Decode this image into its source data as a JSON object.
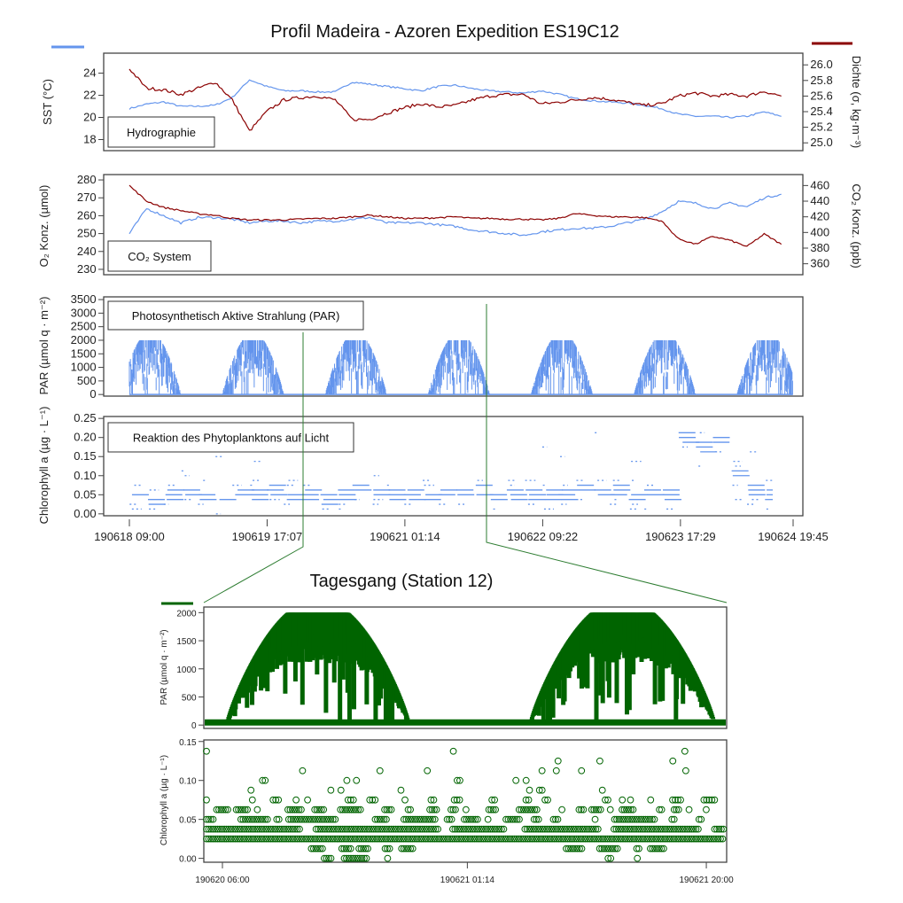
{
  "title": "Profil Madeira - Azoren Expedition ES19C12",
  "subtitle": "Tagesgang (Station 12)",
  "colors": {
    "sst": "#6495ED",
    "density": "#8B0000",
    "o2": "#6495ED",
    "co2": "#8B0000",
    "par": "#6495ED",
    "chl": "#6495ED",
    "detail": "#006400"
  },
  "chart_data": [
    {
      "type": "line",
      "panel_label": "Hydrographie",
      "ylabel_left": "SST (°C)",
      "ylabel_right": "Dichte (σ, kg·m⁻³)",
      "yticks_left": [
        18,
        20,
        22,
        24
      ],
      "yticks_right": [
        25.0,
        25.2,
        25.4,
        25.6,
        25.8,
        26.0
      ],
      "ylim_left": [
        17,
        25.8
      ],
      "ylim_right": [
        24.9,
        26.15
      ],
      "x": [
        "190618 09:00",
        "190618 13:00",
        "190618 17:00",
        "190618 21:00",
        "190619 01:00",
        "190619 05:00",
        "190619 09:00",
        "190619 13:00",
        "190619 17:00",
        "190619 21:00",
        "190620 01:00",
        "190620 05:00",
        "190620 09:00",
        "190620 13:00",
        "190620 17:00",
        "190620 21:00",
        "190621 01:00",
        "190621 05:00",
        "190621 09:00",
        "190621 13:00",
        "190621 17:00",
        "190621 21:00",
        "190622 01:00",
        "190622 05:00",
        "190622 09:00",
        "190622 13:00",
        "190622 17:00",
        "190622 21:00",
        "190623 01:00",
        "190623 05:00",
        "190623 09:00",
        "190623 13:00",
        "190623 17:00",
        "190623 21:00",
        "190624 01:00",
        "190624 05:00",
        "190624 09:00",
        "190624 13:00",
        "190624 17:00"
      ],
      "series": [
        {
          "axis": "left",
          "values": [
            20.8,
            21.2,
            21.4,
            21.0,
            21.0,
            21.1,
            21.8,
            23.4,
            22.8,
            22.4,
            22.4,
            22.3,
            22.3,
            23.2,
            23.0,
            22.8,
            22.6,
            22.4,
            22.8,
            22.9,
            22.6,
            22.4,
            22.3,
            22.2,
            22.4,
            22.1,
            21.7,
            21.5,
            21.4,
            21.3,
            21.1,
            20.8,
            20.3,
            20.1,
            20.1,
            20.0,
            20.1,
            20.5,
            20.1
          ]
        },
        {
          "axis": "right",
          "values": [
            25.95,
            25.7,
            25.68,
            25.62,
            25.7,
            25.78,
            25.55,
            25.15,
            25.4,
            25.55,
            25.58,
            25.6,
            25.55,
            25.3,
            25.3,
            25.38,
            25.45,
            25.5,
            25.46,
            25.48,
            25.55,
            25.6,
            25.62,
            25.62,
            25.5,
            25.52,
            25.55,
            25.58,
            25.56,
            25.52,
            25.48,
            25.5,
            25.6,
            25.64,
            25.6,
            25.62,
            25.6,
            25.66,
            25.6
          ]
        }
      ]
    },
    {
      "type": "line",
      "panel_label": "CO₂ System",
      "ylabel_left": "O₂ Konz. (µmol)",
      "ylabel_right": "CO₂ Konz. (ppb)",
      "yticks_left": [
        230,
        240,
        250,
        260,
        270,
        280
      ],
      "yticks_right": [
        360,
        380,
        400,
        420,
        440,
        460
      ],
      "ylim_left": [
        227,
        283
      ],
      "ylim_right": [
        346,
        474
      ],
      "series": [
        {
          "axis": "left",
          "values": [
            250,
            264,
            260,
            256,
            259,
            259,
            258,
            256,
            257,
            257,
            256,
            257,
            257,
            258,
            259,
            256,
            256,
            256,
            255,
            254,
            252,
            251,
            250,
            249,
            251,
            252,
            253,
            253,
            254,
            256,
            258,
            262,
            268,
            267,
            264,
            267,
            265,
            270,
            272
          ]
        },
        {
          "axis": "right",
          "values": [
            460,
            440,
            432,
            428,
            424,
            422,
            418,
            416,
            416,
            416,
            417,
            418,
            418,
            420,
            422,
            420,
            418,
            418,
            419,
            420,
            418,
            418,
            417,
            417,
            416,
            418,
            424,
            422,
            420,
            420,
            419,
            415,
            392,
            385,
            395,
            390,
            382,
            398,
            385
          ]
        }
      ]
    },
    {
      "type": "scatter",
      "panel_label": "Photosynthetisch Aktive Strahlung (PAR)",
      "ylabel": "PAR (µmol q · m⁻²)",
      "yticks": [
        0,
        500,
        1000,
        1500,
        2000,
        2500,
        3000,
        3500
      ],
      "ylim": [
        -60,
        3600
      ],
      "days": [
        {
          "rise": "190618 06:40",
          "set": "190618 21:00",
          "max": 2000
        },
        {
          "rise": "190619 06:40",
          "set": "190619 21:00",
          "max": 2000
        },
        {
          "rise": "190620 06:40",
          "set": "190620 21:00",
          "max": 2000
        },
        {
          "rise": "190621 06:40",
          "set": "190621 21:00",
          "max": 2000
        },
        {
          "rise": "190622 06:40",
          "set": "190622 21:00",
          "max": 2000
        },
        {
          "rise": "190623 06:40",
          "set": "190623 21:00",
          "max": 2000
        },
        {
          "rise": "190624 06:40",
          "set": "190624 21:00",
          "max": 2000
        }
      ]
    },
    {
      "type": "scatter",
      "panel_label": "Reaktion des Phytoplanktons auf Licht",
      "ylabel": "Chlorophyll a (µg · L⁻¹)",
      "yticks": [
        0.0,
        0.05,
        0.1,
        0.15,
        0.2,
        0.25
      ],
      "ylim": [
        -0.005,
        0.255
      ],
      "median": [
        0.05,
        0.04,
        0.05,
        0.06,
        0.05,
        0.04,
        0.05,
        0.05,
        0.06,
        0.05,
        0.05,
        0.04,
        0.05,
        0.06,
        0.06,
        0.05,
        0.05,
        0.05,
        0.05,
        0.06,
        0.06,
        0.05,
        0.05,
        0.05,
        0.05,
        0.05,
        0.06,
        0.06,
        0.06,
        0.05,
        0.05,
        0.05,
        0.2,
        0.18,
        0.2,
        0.1,
        0.06,
        0.05,
        0.15
      ],
      "xticks": [
        "190618 09:00",
        "190619 17:07",
        "190621 01:14",
        "190622 09:22",
        "190623 17:29",
        "190624 19:45"
      ]
    },
    {
      "type": "scatter",
      "title": "Tagesgang (Station 12)",
      "ylabel": "PAR (µmol q · m⁻²)",
      "yticks": [
        0,
        500,
        1000,
        1500,
        2000
      ],
      "ylim": [
        -60,
        2100
      ],
      "days": [
        {
          "rise": "190620 06:20",
          "set": "190620 20:40",
          "max": 2000
        },
        {
          "rise": "190621 06:10",
          "set": "190621 20:40",
          "max": 2000
        }
      ]
    },
    {
      "type": "scatter",
      "ylabel": "Chlorophyll a  (µg · L⁻¹)",
      "yticks": [
        0.0,
        0.05,
        0.1,
        0.15
      ],
      "ylim": [
        -0.005,
        0.152
      ],
      "xticks": [
        "190620 06:00",
        "190621 01:14",
        "190621 20:00"
      ],
      "bands": [
        {
          "value": 0.025,
          "from": "190620 04:30",
          "to": "190621 21:40",
          "density": 1.0
        },
        {
          "value": 0.0375,
          "from": "190620 04:30",
          "to": "190621 21:40",
          "density": 0.95
        },
        {
          "value": 0.05,
          "from": "190620 04:30",
          "to": "190621 21:40",
          "density": 0.8
        },
        {
          "value": 0.0625,
          "from": "190620 04:30",
          "to": "190621 21:40",
          "density": 0.7
        },
        {
          "value": 0.075,
          "from": "190620 04:30",
          "to": "190621 21:40",
          "density": 0.5
        },
        {
          "value": 0.0875,
          "from": "190620 04:30",
          "to": "190621 21:40",
          "density": 0.2
        },
        {
          "value": 0.1,
          "from": "190620 04:30",
          "to": "190621 21:40",
          "density": 0.12
        },
        {
          "value": 0.1125,
          "from": "190620 04:30",
          "to": "190621 21:40",
          "density": 0.1
        },
        {
          "value": 0.125,
          "from": "190620 04:30",
          "to": "190621 21:40",
          "density": 0.07
        },
        {
          "value": 0.1375,
          "from": "190620 04:30",
          "to": "190621 21:40",
          "density": 0.06
        },
        {
          "value": 0.15,
          "from": "190620 04:30",
          "to": "190621 21:40",
          "density": 0.05
        },
        {
          "value": 0.0125,
          "from": "190620 12:00",
          "to": "190620 21:00",
          "density": 0.9
        },
        {
          "value": 0.0125,
          "from": "190621 09:00",
          "to": "190621 18:00",
          "density": 0.9
        },
        {
          "value": 0.0,
          "from": "190620 14:00",
          "to": "190620 19:00",
          "density": 0.7
        },
        {
          "value": 0.0,
          "from": "190621 11:30",
          "to": "190621 16:00",
          "density": 0.2
        }
      ]
    }
  ]
}
